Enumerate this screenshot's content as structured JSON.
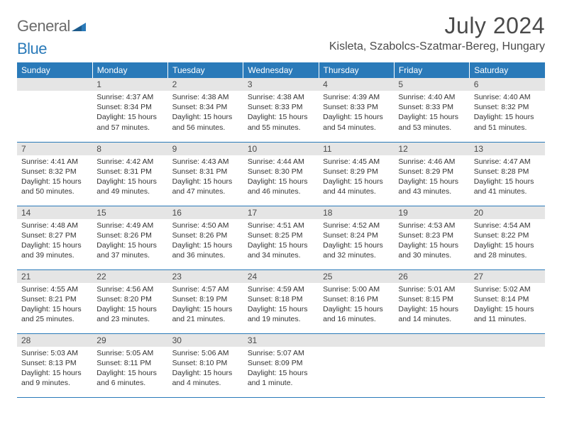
{
  "brand": {
    "word1": "General",
    "word2": "Blue"
  },
  "colors": {
    "header_bg": "#2a7ab9",
    "header_text": "#ffffff",
    "daynum_bg": "#e5e5e5",
    "text": "#333333",
    "border": "#2a7ab9"
  },
  "title": "July 2024",
  "location": "Kisleta, Szabolcs-Szatmar-Bereg, Hungary",
  "dow": [
    "Sunday",
    "Monday",
    "Tuesday",
    "Wednesday",
    "Thursday",
    "Friday",
    "Saturday"
  ],
  "weeks": [
    [
      null,
      {
        "n": "1",
        "sr": "4:37 AM",
        "ss": "8:34 PM",
        "dl": "15 hours and 57 minutes."
      },
      {
        "n": "2",
        "sr": "4:38 AM",
        "ss": "8:34 PM",
        "dl": "15 hours and 56 minutes."
      },
      {
        "n": "3",
        "sr": "4:38 AM",
        "ss": "8:33 PM",
        "dl": "15 hours and 55 minutes."
      },
      {
        "n": "4",
        "sr": "4:39 AM",
        "ss": "8:33 PM",
        "dl": "15 hours and 54 minutes."
      },
      {
        "n": "5",
        "sr": "4:40 AM",
        "ss": "8:33 PM",
        "dl": "15 hours and 53 minutes."
      },
      {
        "n": "6",
        "sr": "4:40 AM",
        "ss": "8:32 PM",
        "dl": "15 hours and 51 minutes."
      }
    ],
    [
      {
        "n": "7",
        "sr": "4:41 AM",
        "ss": "8:32 PM",
        "dl": "15 hours and 50 minutes."
      },
      {
        "n": "8",
        "sr": "4:42 AM",
        "ss": "8:31 PM",
        "dl": "15 hours and 49 minutes."
      },
      {
        "n": "9",
        "sr": "4:43 AM",
        "ss": "8:31 PM",
        "dl": "15 hours and 47 minutes."
      },
      {
        "n": "10",
        "sr": "4:44 AM",
        "ss": "8:30 PM",
        "dl": "15 hours and 46 minutes."
      },
      {
        "n": "11",
        "sr": "4:45 AM",
        "ss": "8:29 PM",
        "dl": "15 hours and 44 minutes."
      },
      {
        "n": "12",
        "sr": "4:46 AM",
        "ss": "8:29 PM",
        "dl": "15 hours and 43 minutes."
      },
      {
        "n": "13",
        "sr": "4:47 AM",
        "ss": "8:28 PM",
        "dl": "15 hours and 41 minutes."
      }
    ],
    [
      {
        "n": "14",
        "sr": "4:48 AM",
        "ss": "8:27 PM",
        "dl": "15 hours and 39 minutes."
      },
      {
        "n": "15",
        "sr": "4:49 AM",
        "ss": "8:26 PM",
        "dl": "15 hours and 37 minutes."
      },
      {
        "n": "16",
        "sr": "4:50 AM",
        "ss": "8:26 PM",
        "dl": "15 hours and 36 minutes."
      },
      {
        "n": "17",
        "sr": "4:51 AM",
        "ss": "8:25 PM",
        "dl": "15 hours and 34 minutes."
      },
      {
        "n": "18",
        "sr": "4:52 AM",
        "ss": "8:24 PM",
        "dl": "15 hours and 32 minutes."
      },
      {
        "n": "19",
        "sr": "4:53 AM",
        "ss": "8:23 PM",
        "dl": "15 hours and 30 minutes."
      },
      {
        "n": "20",
        "sr": "4:54 AM",
        "ss": "8:22 PM",
        "dl": "15 hours and 28 minutes."
      }
    ],
    [
      {
        "n": "21",
        "sr": "4:55 AM",
        "ss": "8:21 PM",
        "dl": "15 hours and 25 minutes."
      },
      {
        "n": "22",
        "sr": "4:56 AM",
        "ss": "8:20 PM",
        "dl": "15 hours and 23 minutes."
      },
      {
        "n": "23",
        "sr": "4:57 AM",
        "ss": "8:19 PM",
        "dl": "15 hours and 21 minutes."
      },
      {
        "n": "24",
        "sr": "4:59 AM",
        "ss": "8:18 PM",
        "dl": "15 hours and 19 minutes."
      },
      {
        "n": "25",
        "sr": "5:00 AM",
        "ss": "8:16 PM",
        "dl": "15 hours and 16 minutes."
      },
      {
        "n": "26",
        "sr": "5:01 AM",
        "ss": "8:15 PM",
        "dl": "15 hours and 14 minutes."
      },
      {
        "n": "27",
        "sr": "5:02 AM",
        "ss": "8:14 PM",
        "dl": "15 hours and 11 minutes."
      }
    ],
    [
      {
        "n": "28",
        "sr": "5:03 AM",
        "ss": "8:13 PM",
        "dl": "15 hours and 9 minutes."
      },
      {
        "n": "29",
        "sr": "5:05 AM",
        "ss": "8:11 PM",
        "dl": "15 hours and 6 minutes."
      },
      {
        "n": "30",
        "sr": "5:06 AM",
        "ss": "8:10 PM",
        "dl": "15 hours and 4 minutes."
      },
      {
        "n": "31",
        "sr": "5:07 AM",
        "ss": "8:09 PM",
        "dl": "15 hours and 1 minute."
      },
      null,
      null,
      null
    ]
  ],
  "labels": {
    "sunrise": "Sunrise:",
    "sunset": "Sunset:",
    "daylight": "Daylight:"
  }
}
